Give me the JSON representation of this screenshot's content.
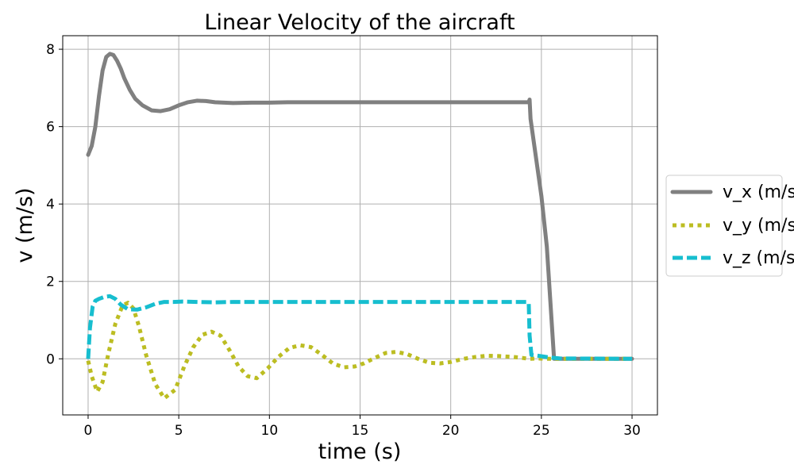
{
  "chart_data": {
    "type": "line",
    "title": "Linear Velocity of the aircraft",
    "xlabel": "time (s)",
    "ylabel": "v (m/s)",
    "xlim": [
      -1.4,
      31.4
    ],
    "ylim": [
      -1.45,
      8.35
    ],
    "xticks": [
      0,
      5,
      10,
      15,
      20,
      25,
      30
    ],
    "yticks": [
      0,
      2,
      4,
      6,
      8
    ],
    "grid": true,
    "legend_position": "center-right outside",
    "series": [
      {
        "name": "v_x (m/s)",
        "color": "#808080",
        "dash": "solid",
        "x": [
          0,
          0.2,
          0.4,
          0.6,
          0.8,
          1.0,
          1.2,
          1.4,
          1.6,
          1.8,
          2.0,
          2.3,
          2.6,
          3.0,
          3.5,
          4.0,
          4.5,
          5.0,
          5.5,
          6.0,
          6.5,
          7.0,
          7.5,
          8.0,
          9.0,
          10.0,
          11.0,
          12.0,
          14.0,
          16.0,
          18.0,
          20.0,
          22.0,
          24.0,
          24.3,
          24.35,
          24.4,
          25.0,
          25.3,
          25.7,
          30.0
        ],
        "values": [
          5.27,
          5.5,
          6.0,
          6.8,
          7.45,
          7.8,
          7.88,
          7.85,
          7.7,
          7.5,
          7.25,
          6.95,
          6.72,
          6.55,
          6.42,
          6.4,
          6.45,
          6.55,
          6.63,
          6.67,
          6.66,
          6.63,
          6.62,
          6.61,
          6.62,
          6.62,
          6.63,
          6.63,
          6.63,
          6.63,
          6.63,
          6.63,
          6.63,
          6.63,
          6.63,
          6.7,
          6.2,
          4.2,
          2.9,
          0.0,
          0.0
        ]
      },
      {
        "name": "v_y (m/s)",
        "color": "#bcbd22",
        "dash": "dotted",
        "x": [
          0,
          0.2,
          0.5,
          0.8,
          1.1,
          1.5,
          1.9,
          2.2,
          2.5,
          2.8,
          3.2,
          3.7,
          4.2,
          4.8,
          5.3,
          5.8,
          6.3,
          6.8,
          7.3,
          7.8,
          8.3,
          8.8,
          9.3,
          9.9,
          10.5,
          11.1,
          11.7,
          12.3,
          12.9,
          13.5,
          14.1,
          14.7,
          15.2,
          15.8,
          16.4,
          17.0,
          17.6,
          18.2,
          18.8,
          19.4,
          20.0,
          20.7,
          21.4,
          22.0,
          22.7,
          23.4,
          24.0,
          24.3,
          24.4,
          24.8,
          25.2,
          25.6,
          26.0,
          30.0
        ],
        "values": [
          -0.05,
          -0.45,
          -0.85,
          -0.6,
          0.1,
          0.9,
          1.38,
          1.45,
          1.3,
          0.85,
          0.1,
          -0.65,
          -1.02,
          -0.8,
          -0.2,
          0.3,
          0.62,
          0.7,
          0.6,
          0.22,
          -0.2,
          -0.45,
          -0.5,
          -0.25,
          0.05,
          0.28,
          0.35,
          0.3,
          0.1,
          -0.12,
          -0.22,
          -0.2,
          -0.12,
          0.02,
          0.15,
          0.18,
          0.12,
          0.0,
          -0.1,
          -0.12,
          -0.08,
          0.0,
          0.05,
          0.08,
          0.07,
          0.05,
          0.02,
          0.0,
          0.0,
          0.01,
          0.0,
          0.0,
          0.0,
          0.0
        ]
      },
      {
        "name": "v_z (m/s)",
        "color": "#17becf",
        "dash": "dashed",
        "x": [
          0,
          0.1,
          0.25,
          0.4,
          0.6,
          0.9,
          1.2,
          1.5,
          1.8,
          2.2,
          2.7,
          3.2,
          3.7,
          4.2,
          4.7,
          5.2,
          6.0,
          7.0,
          8.0,
          10.0,
          15.0,
          20.0,
          24.0,
          24.2,
          24.3,
          24.35,
          24.45,
          24.8,
          25.5,
          26.0,
          30.0
        ],
        "values": [
          0.0,
          0.8,
          1.35,
          1.5,
          1.55,
          1.6,
          1.62,
          1.55,
          1.4,
          1.28,
          1.27,
          1.33,
          1.42,
          1.47,
          1.47,
          1.48,
          1.47,
          1.46,
          1.47,
          1.47,
          1.47,
          1.47,
          1.47,
          1.47,
          1.45,
          0.6,
          0.1,
          0.08,
          0.03,
          0.01,
          0.0
        ]
      }
    ]
  }
}
